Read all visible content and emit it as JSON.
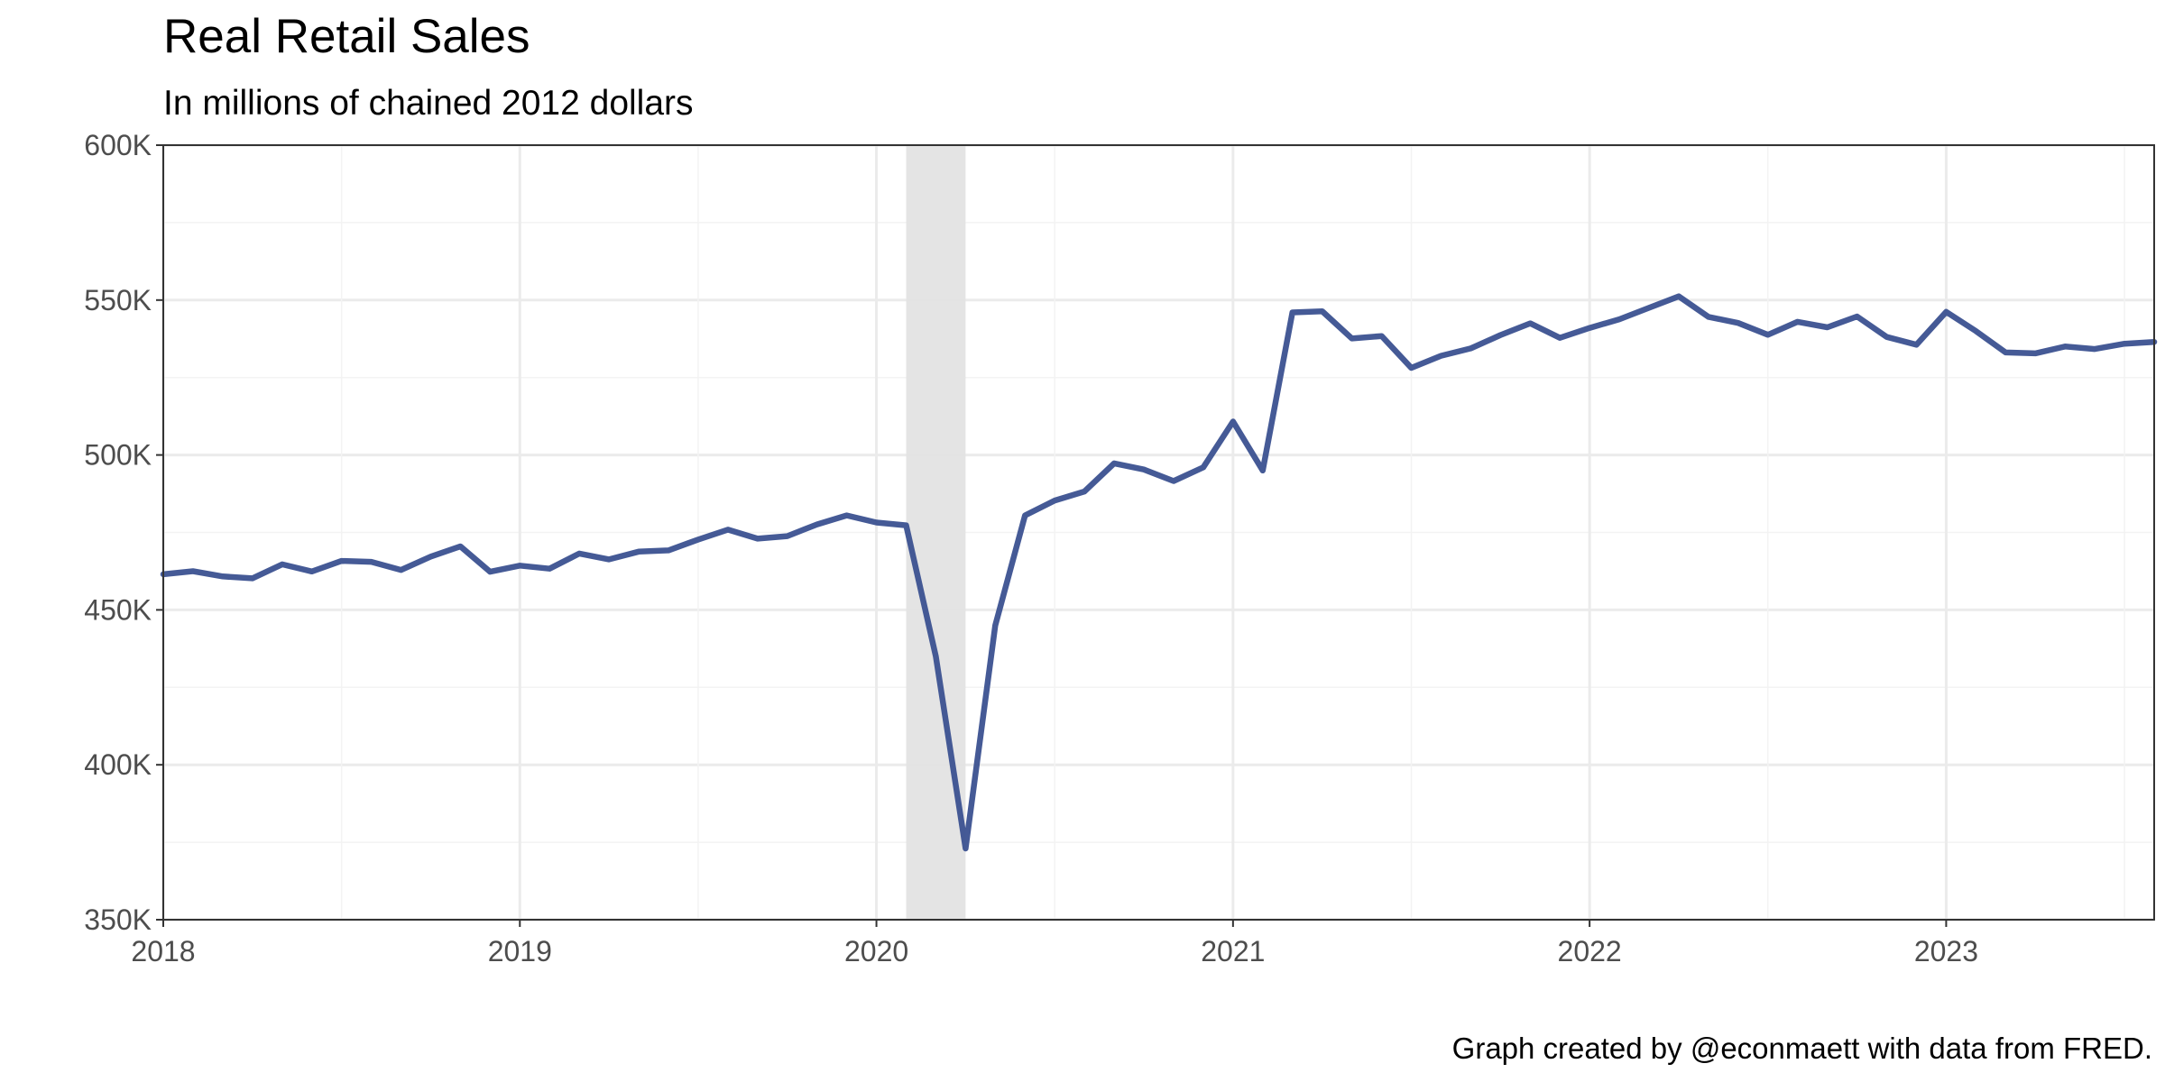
{
  "chart_data": {
    "type": "line",
    "title": "Real Retail Sales",
    "subtitle": "In millions of chained 2012 dollars",
    "caption": "Graph created by @econmaett with data from FRED.",
    "xlabel": "",
    "ylabel": "",
    "x_ticks": [
      "2018",
      "2019",
      "2020",
      "2021",
      "2022",
      "2023"
    ],
    "y_ticks": [
      "350K",
      "400K",
      "450K",
      "500K",
      "550K",
      "600K"
    ],
    "ylim": [
      350000,
      600000
    ],
    "xlim": [
      "2018-01",
      "2023-08"
    ],
    "grid": true,
    "recession_band": {
      "start": "2020-02",
      "end": "2020-04"
    },
    "colors": {
      "line": "#3b5190",
      "recession": "#e3e3e3",
      "grid_major": "#ebebeb",
      "grid_minor": "#f3f3f3",
      "panel_border": "#333333"
    },
    "series": [
      {
        "x": [
          "2018-01",
          "2018-02",
          "2018-03",
          "2018-04",
          "2018-05",
          "2018-06",
          "2018-07",
          "2018-08",
          "2018-09",
          "2018-10",
          "2018-11",
          "2018-12",
          "2019-01",
          "2019-02",
          "2019-03",
          "2019-04",
          "2019-05",
          "2019-06",
          "2019-07",
          "2019-08",
          "2019-09",
          "2019-10",
          "2019-11",
          "2019-12",
          "2020-01",
          "2020-02",
          "2020-03",
          "2020-04",
          "2020-05",
          "2020-06",
          "2020-07",
          "2020-08",
          "2020-09",
          "2020-10",
          "2020-11",
          "2020-12",
          "2021-01",
          "2021-02",
          "2021-03",
          "2021-04",
          "2021-05",
          "2021-06",
          "2021-07",
          "2021-08",
          "2021-09",
          "2021-10",
          "2021-11",
          "2021-12",
          "2022-01",
          "2022-02",
          "2022-03",
          "2022-04",
          "2022-05",
          "2022-06",
          "2022-07",
          "2022-08",
          "2022-09",
          "2022-10",
          "2022-11",
          "2022-12",
          "2023-01",
          "2023-02",
          "2023-03",
          "2023-04",
          "2023-05",
          "2023-06",
          "2023-07",
          "2023-08"
        ],
        "values": [
          461500,
          462500,
          460800,
          460200,
          464700,
          462400,
          465800,
          465500,
          462900,
          467200,
          470500,
          462300,
          464300,
          463300,
          468200,
          466300,
          468800,
          469200,
          472700,
          475900,
          473000,
          473800,
          477600,
          480500,
          478200,
          477300,
          435000,
          373000,
          445000,
          480500,
          485300,
          488200,
          497300,
          495300,
          491600,
          496000,
          510800,
          495000,
          546000,
          546400,
          537600,
          538400,
          528100,
          532000,
          534400,
          538700,
          542500,
          537800,
          541000,
          543800,
          547500,
          551200,
          544600,
          542600,
          538800,
          543000,
          541200,
          544700,
          538100,
          535600,
          546200,
          540000,
          533100,
          532800,
          535000,
          534200,
          535900,
          536500
        ]
      }
    ]
  }
}
